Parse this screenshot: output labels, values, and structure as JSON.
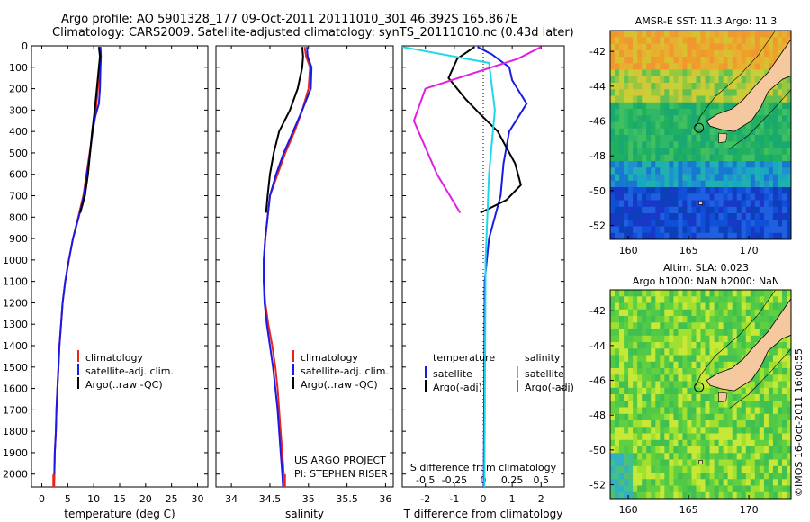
{
  "header": {
    "line1": "Argo profile: AO 5901328_177 09-Oct-2011 20111010_301 46.392S 165.867E",
    "line2": "Climatology: CARS2009. Satellite-adjusted climatology: synTS_20111010.nc (0.43d later)"
  },
  "depth_ticks": [
    "0",
    "100",
    "200",
    "300",
    "400",
    "500",
    "600",
    "700",
    "800",
    "900",
    "1000",
    "1100",
    "1200",
    "1300",
    "1400",
    "1500",
    "1600",
    "1700",
    "1800",
    "1900",
    "2000"
  ],
  "colors": {
    "red": "#e8241e",
    "blue": "#1a1ae6",
    "black": "#000000",
    "cyan": "#1ed8e8",
    "magenta": "#e020e0",
    "land": "#f5c8a0"
  },
  "chart_data": [
    {
      "type": "line",
      "id": "temperature",
      "xlabel": "temperature (deg C)",
      "xticks": [
        "0",
        "5",
        "10",
        "15",
        "20",
        "25",
        "30"
      ],
      "xlim": [
        -2,
        32
      ],
      "ylim": [
        2060,
        0
      ],
      "legend": [
        "climatology",
        "satellite-adj. clim.",
        "Argo(..raw -QC)"
      ],
      "series": [
        {
          "name": "climatology",
          "color": "red",
          "points": [
            [
              11.2,
              5
            ],
            [
              11.3,
              50
            ],
            [
              11.2,
              100
            ],
            [
              10.8,
              200
            ],
            [
              10.4,
              300
            ],
            [
              9.8,
              400
            ],
            [
              9.2,
              500
            ],
            [
              8.6,
              600
            ],
            [
              8.0,
              700
            ],
            [
              7.0,
              800
            ],
            [
              6.0,
              900
            ],
            [
              5.2,
              1000
            ],
            [
              4.5,
              1100
            ],
            [
              4.0,
              1200
            ],
            [
              3.7,
              1300
            ],
            [
              3.4,
              1400
            ],
            [
              3.2,
              1500
            ],
            [
              3.0,
              1600
            ],
            [
              2.8,
              1700
            ],
            [
              2.7,
              1800
            ],
            [
              2.5,
              1900
            ],
            [
              2.4,
              2000
            ],
            [
              2.3,
              2060
            ]
          ]
        },
        {
          "name": "satellite-adj. clim.",
          "color": "blue",
          "points": [
            [
              11.3,
              5
            ],
            [
              11.4,
              50
            ],
            [
              11.3,
              100
            ],
            [
              11.2,
              200
            ],
            [
              11.0,
              270
            ],
            [
              10.3,
              330
            ],
            [
              9.8,
              400
            ],
            [
              9.3,
              500
            ],
            [
              8.7,
              600
            ],
            [
              8.1,
              700
            ],
            [
              7.1,
              800
            ],
            [
              6.0,
              900
            ],
            [
              5.2,
              1000
            ],
            [
              4.5,
              1100
            ],
            [
              4.0,
              1200
            ],
            [
              3.7,
              1300
            ],
            [
              3.4,
              1400
            ],
            [
              3.2,
              1500
            ],
            [
              3.0,
              1600
            ],
            [
              2.8,
              1700
            ],
            [
              2.7,
              1800
            ],
            [
              2.5,
              1900
            ],
            [
              2.4,
              2000
            ],
            [
              2.3,
              2060
            ]
          ]
        },
        {
          "name": "Argo(..raw -QC)",
          "color": "black",
          "points": [
            [
              11.0,
              5
            ],
            [
              11.2,
              50
            ],
            [
              11.0,
              100
            ],
            [
              10.6,
              200
            ],
            [
              10.2,
              300
            ],
            [
              9.7,
              400
            ],
            [
              9.3,
              500
            ],
            [
              8.9,
              600
            ],
            [
              8.3,
              700
            ],
            [
              7.4,
              780
            ]
          ]
        }
      ]
    },
    {
      "type": "line",
      "id": "salinity",
      "xlabel": "salinity",
      "xticks": [
        "34",
        "34.5",
        "35",
        "35.5",
        "36"
      ],
      "xlim": [
        33.8,
        36.1
      ],
      "ylim": [
        2060,
        0
      ],
      "legend": [
        "climatology",
        "satellite-adj. clim.",
        "Argo(..raw -QC)"
      ],
      "series": [
        {
          "name": "climatology",
          "color": "red",
          "points": [
            [
              34.95,
              5
            ],
            [
              34.97,
              50
            ],
            [
              35.02,
              100
            ],
            [
              35.0,
              200
            ],
            [
              34.92,
              300
            ],
            [
              34.82,
              400
            ],
            [
              34.7,
              500
            ],
            [
              34.6,
              600
            ],
            [
              34.5,
              700
            ],
            [
              34.47,
              800
            ],
            [
              34.44,
              900
            ],
            [
              34.42,
              1000
            ],
            [
              34.42,
              1100
            ],
            [
              34.44,
              1200
            ],
            [
              34.48,
              1300
            ],
            [
              34.53,
              1400
            ],
            [
              34.57,
              1500
            ],
            [
              34.6,
              1600
            ],
            [
              34.62,
              1700
            ],
            [
              34.64,
              1800
            ],
            [
              34.66,
              1900
            ],
            [
              34.68,
              2000
            ],
            [
              34.69,
              2060
            ]
          ]
        },
        {
          "name": "satellite-adj. clim.",
          "color": "blue",
          "points": [
            [
              34.98,
              5
            ],
            [
              34.99,
              50
            ],
            [
              35.04,
              100
            ],
            [
              35.03,
              200
            ],
            [
              34.92,
              300
            ],
            [
              34.8,
              400
            ],
            [
              34.68,
              500
            ],
            [
              34.58,
              600
            ],
            [
              34.5,
              700
            ],
            [
              34.47,
              800
            ],
            [
              34.44,
              900
            ],
            [
              34.42,
              1000
            ],
            [
              34.42,
              1100
            ],
            [
              34.43,
              1200
            ],
            [
              34.46,
              1300
            ],
            [
              34.5,
              1400
            ],
            [
              34.54,
              1500
            ],
            [
              34.57,
              1600
            ],
            [
              34.6,
              1700
            ],
            [
              34.62,
              1800
            ],
            [
              34.64,
              1900
            ],
            [
              34.66,
              2000
            ],
            [
              34.67,
              2060
            ]
          ]
        },
        {
          "name": "Argo(..raw -QC)",
          "color": "black",
          "points": [
            [
              34.92,
              5
            ],
            [
              34.93,
              50
            ],
            [
              34.92,
              100
            ],
            [
              34.86,
              200
            ],
            [
              34.76,
              300
            ],
            [
              34.62,
              400
            ],
            [
              34.55,
              500
            ],
            [
              34.5,
              600
            ],
            [
              34.47,
              700
            ],
            [
              34.45,
              780
            ]
          ]
        }
      ],
      "annotation": [
        "US ARGO PROJECT",
        "PI: STEPHEN RISER"
      ]
    },
    {
      "type": "line",
      "id": "difference",
      "xlabel": "T difference from climatology",
      "xticks": [
        "-2",
        "-1",
        "0",
        "1",
        "2"
      ],
      "xlim": [
        -2.8,
        2.8
      ],
      "top_label": "S difference from climatology",
      "top_ticks": [
        "-0.5",
        "-0.25",
        "0",
        "0.25",
        "0.5"
      ],
      "ylim": [
        2060,
        0
      ],
      "legend_headers": [
        "temperature",
        "salinity"
      ],
      "legend": [
        "satellite",
        "Argo(-adj)",
        "satellite",
        "Argo(-adj)"
      ],
      "series": [
        {
          "name": "satellite",
          "quantity": "T",
          "color": "blue",
          "points": [
            [
              -0.2,
              5
            ],
            [
              0.3,
              40
            ],
            [
              0.9,
              100
            ],
            [
              1.0,
              160
            ],
            [
              1.5,
              270
            ],
            [
              0.9,
              400
            ],
            [
              0.7,
              550
            ],
            [
              0.6,
              700
            ],
            [
              0.2,
              900
            ],
            [
              0.05,
              1100
            ],
            [
              0.02,
              2060
            ]
          ]
        },
        {
          "name": "Argo(-adj)",
          "quantity": "T",
          "color": "black",
          "points": [
            [
              -0.3,
              5
            ],
            [
              -0.9,
              60
            ],
            [
              -1.2,
              150
            ],
            [
              -0.6,
              250
            ],
            [
              -0.1,
              320
            ],
            [
              0.5,
              400
            ],
            [
              1.1,
              550
            ],
            [
              1.3,
              650
            ],
            [
              0.8,
              720
            ],
            [
              -0.1,
              780
            ]
          ]
        },
        {
          "name": "satellite",
          "quantity": "S",
          "color": "cyan",
          "points": [
            [
              -0.7,
              5
            ],
            [
              0.05,
              80
            ],
            [
              0.1,
              300
            ],
            [
              0.05,
              600
            ],
            [
              0.02,
              1000
            ],
            [
              0.01,
              2060
            ]
          ]
        },
        {
          "name": "Argo(-adj)",
          "quantity": "S",
          "color": "magenta",
          "points": [
            [
              0.5,
              5
            ],
            [
              0.3,
              60
            ],
            [
              -0.5,
              200
            ],
            [
              -0.6,
              350
            ],
            [
              -0.4,
              600
            ],
            [
              -0.2,
              780
            ]
          ]
        }
      ]
    },
    {
      "type": "heatmap",
      "id": "sst_map",
      "title": "AMSR-E SST: 11.3 Argo: 11.3",
      "xticks": [
        "160",
        "165",
        "170"
      ],
      "yticks": [
        "-42",
        "-44",
        "-46",
        "-48",
        "-50",
        "-52"
      ],
      "xlim": [
        158.5,
        173.5
      ],
      "ylim": [
        -52.8,
        -40.8
      ]
    },
    {
      "type": "heatmap",
      "id": "sla_map",
      "title": [
        "Altim. SLA: 0.023",
        "Argo h1000: NaN h2000: NaN"
      ],
      "xticks": [
        "160",
        "165",
        "170"
      ],
      "yticks": [
        "-42",
        "-44",
        "-46",
        "-48",
        "-50",
        "-52"
      ],
      "xlim": [
        158.5,
        173.5
      ],
      "ylim": [
        -52.8,
        -40.8
      ]
    }
  ],
  "side_label": "©IMOS 16-Oct-2011 16:00:55"
}
